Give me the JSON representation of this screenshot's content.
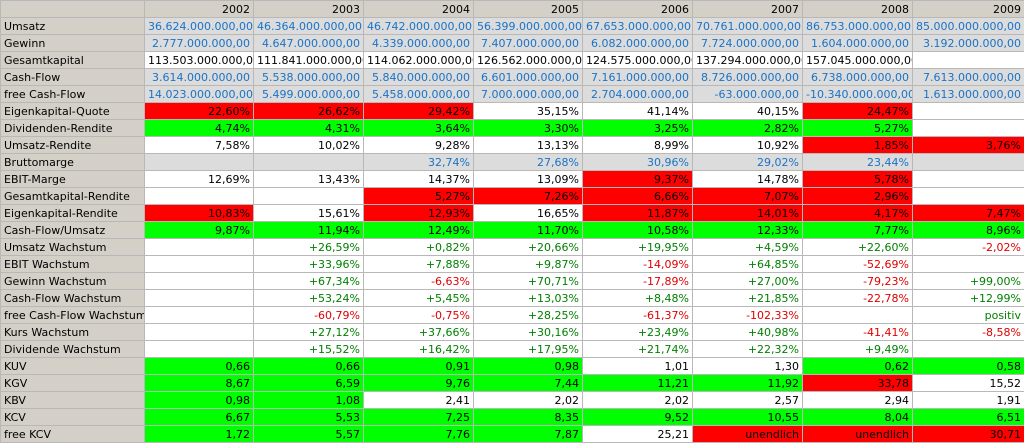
{
  "colors": {
    "green": "#00ff00",
    "red": "#ff0000",
    "grey": "#dcdcdc",
    "blue_text": "#1a73c7"
  },
  "years": [
    "2002",
    "2003",
    "2004",
    "2005",
    "2006",
    "2007",
    "2008",
    "2009"
  ],
  "rows": [
    {
      "label": "Umsatz",
      "values": [
        {
          "v": "36.624.000.000,00",
          "bg": "l",
          "fg": "b"
        },
        {
          "v": "46.364.000.000,00",
          "bg": "l",
          "fg": "b"
        },
        {
          "v": "46.742.000.000,00",
          "bg": "l",
          "fg": "b"
        },
        {
          "v": "56.399.000.000,00",
          "bg": "l",
          "fg": "b"
        },
        {
          "v": "67.653.000.000,00",
          "bg": "l",
          "fg": "b"
        },
        {
          "v": "70.761.000.000,00",
          "bg": "l",
          "fg": "b"
        },
        {
          "v": "86.753.000.000,00",
          "bg": "l",
          "fg": "b"
        },
        {
          "v": "85.000.000.000,00",
          "bg": "l",
          "fg": "b"
        }
      ]
    },
    {
      "label": "Gewinn",
      "values": [
        {
          "v": "2.777.000.000,00",
          "bg": "l",
          "fg": "b"
        },
        {
          "v": "4.647.000.000,00",
          "bg": "l",
          "fg": "b"
        },
        {
          "v": "4.339.000.000,00",
          "bg": "l",
          "fg": "b"
        },
        {
          "v": "7.407.000.000,00",
          "bg": "l",
          "fg": "b"
        },
        {
          "v": "6.082.000.000,00",
          "bg": "l",
          "fg": "b"
        },
        {
          "v": "7.724.000.000,00",
          "bg": "l",
          "fg": "b"
        },
        {
          "v": "1.604.000.000,00",
          "bg": "l",
          "fg": "b"
        },
        {
          "v": "3.192.000.000,00",
          "bg": "l",
          "fg": "b"
        }
      ]
    },
    {
      "label": "Gesamtkapital",
      "values": [
        {
          "v": "113.503.000.000,00",
          "bg": "w",
          "fg": "k"
        },
        {
          "v": "111.841.000.000,00",
          "bg": "w",
          "fg": "k"
        },
        {
          "v": "114.062.000.000,00",
          "bg": "w",
          "fg": "k"
        },
        {
          "v": "126.562.000.000,00",
          "bg": "w",
          "fg": "k"
        },
        {
          "v": "124.575.000.000,00",
          "bg": "w",
          "fg": "k"
        },
        {
          "v": "137.294.000.000,00",
          "bg": "w",
          "fg": "k"
        },
        {
          "v": "157.045.000.000,00",
          "bg": "w",
          "fg": "k"
        },
        {
          "v": "",
          "bg": "w",
          "fg": "k"
        }
      ]
    },
    {
      "label": "Cash-Flow",
      "values": [
        {
          "v": "3.614.000.000,00",
          "bg": "l",
          "fg": "b"
        },
        {
          "v": "5.538.000.000,00",
          "bg": "l",
          "fg": "b"
        },
        {
          "v": "5.840.000.000,00",
          "bg": "l",
          "fg": "b"
        },
        {
          "v": "6.601.000.000,00",
          "bg": "l",
          "fg": "b"
        },
        {
          "v": "7.161.000.000,00",
          "bg": "l",
          "fg": "b"
        },
        {
          "v": "8.726.000.000,00",
          "bg": "l",
          "fg": "b"
        },
        {
          "v": "6.738.000.000,00",
          "bg": "l",
          "fg": "b"
        },
        {
          "v": "7.613.000.000,00",
          "bg": "l",
          "fg": "b"
        }
      ]
    },
    {
      "label": "free Cash-Flow",
      "values": [
        {
          "v": "14.023.000.000,00",
          "bg": "l",
          "fg": "b"
        },
        {
          "v": "5.499.000.000,00",
          "bg": "l",
          "fg": "b"
        },
        {
          "v": "5.458.000.000,00",
          "bg": "l",
          "fg": "b"
        },
        {
          "v": "7.000.000.000,00",
          "bg": "l",
          "fg": "b"
        },
        {
          "v": "2.704.000.000,00",
          "bg": "l",
          "fg": "b"
        },
        {
          "v": "-63.000.000,00",
          "bg": "l",
          "fg": "b"
        },
        {
          "v": "-10.340.000.000,00",
          "bg": "l",
          "fg": "b"
        },
        {
          "v": "1.613.000.000,00",
          "bg": "l",
          "fg": "b"
        }
      ]
    },
    {
      "label": "Eigenkapital-Quote",
      "values": [
        {
          "v": "22,60%",
          "bg": "r",
          "fg": "k"
        },
        {
          "v": "26,62%",
          "bg": "r",
          "fg": "k"
        },
        {
          "v": "29,42%",
          "bg": "r",
          "fg": "k"
        },
        {
          "v": "35,15%",
          "bg": "w",
          "fg": "k"
        },
        {
          "v": "41,14%",
          "bg": "w",
          "fg": "k"
        },
        {
          "v": "40,15%",
          "bg": "w",
          "fg": "k"
        },
        {
          "v": "24,47%",
          "bg": "r",
          "fg": "k"
        },
        {
          "v": "",
          "bg": "w",
          "fg": "k"
        }
      ]
    },
    {
      "label": "Dividenden-Rendite",
      "values": [
        {
          "v": "4,74%",
          "bg": "g",
          "fg": "k"
        },
        {
          "v": "4,31%",
          "bg": "g",
          "fg": "k"
        },
        {
          "v": "3,64%",
          "bg": "g",
          "fg": "k"
        },
        {
          "v": "3,30%",
          "bg": "g",
          "fg": "k"
        },
        {
          "v": "3,25%",
          "bg": "g",
          "fg": "k"
        },
        {
          "v": "2,82%",
          "bg": "g",
          "fg": "k"
        },
        {
          "v": "5,27%",
          "bg": "g",
          "fg": "k"
        },
        {
          "v": "",
          "bg": "w",
          "fg": "k"
        }
      ]
    },
    {
      "label": "Umsatz-Rendite",
      "values": [
        {
          "v": "7,58%",
          "bg": "w",
          "fg": "k"
        },
        {
          "v": "10,02%",
          "bg": "w",
          "fg": "k"
        },
        {
          "v": "9,28%",
          "bg": "w",
          "fg": "k"
        },
        {
          "v": "13,13%",
          "bg": "w",
          "fg": "k"
        },
        {
          "v": "8,99%",
          "bg": "w",
          "fg": "k"
        },
        {
          "v": "10,92%",
          "bg": "w",
          "fg": "k"
        },
        {
          "v": "1,85%",
          "bg": "r",
          "fg": "k"
        },
        {
          "v": "3,76%",
          "bg": "r",
          "fg": "k"
        }
      ]
    },
    {
      "label": "Bruttomarge",
      "values": [
        {
          "v": "",
          "bg": "l",
          "fg": "b"
        },
        {
          "v": "",
          "bg": "l",
          "fg": "b"
        },
        {
          "v": "32,74%",
          "bg": "l",
          "fg": "b"
        },
        {
          "v": "27,68%",
          "bg": "l",
          "fg": "b"
        },
        {
          "v": "30,96%",
          "bg": "l",
          "fg": "b"
        },
        {
          "v": "29,02%",
          "bg": "l",
          "fg": "b"
        },
        {
          "v": "23,44%",
          "bg": "l",
          "fg": "b"
        },
        {
          "v": "",
          "bg": "l",
          "fg": "b"
        }
      ]
    },
    {
      "label": "EBIT-Marge",
      "values": [
        {
          "v": "12,69%",
          "bg": "w",
          "fg": "k"
        },
        {
          "v": "13,43%",
          "bg": "w",
          "fg": "k"
        },
        {
          "v": "14,37%",
          "bg": "w",
          "fg": "k"
        },
        {
          "v": "13,09%",
          "bg": "w",
          "fg": "k"
        },
        {
          "v": "9,37%",
          "bg": "r",
          "fg": "k"
        },
        {
          "v": "14,78%",
          "bg": "w",
          "fg": "k"
        },
        {
          "v": "5,78%",
          "bg": "r",
          "fg": "k"
        },
        {
          "v": "",
          "bg": "w",
          "fg": "k"
        }
      ]
    },
    {
      "label": "Gesamtkapital-Rendite",
      "values": [
        {
          "v": "",
          "bg": "w",
          "fg": "k"
        },
        {
          "v": "",
          "bg": "w",
          "fg": "k"
        },
        {
          "v": "5,27%",
          "bg": "r",
          "fg": "k"
        },
        {
          "v": "7,26%",
          "bg": "r",
          "fg": "k"
        },
        {
          "v": "6,66%",
          "bg": "r",
          "fg": "k"
        },
        {
          "v": "7,07%",
          "bg": "r",
          "fg": "k"
        },
        {
          "v": "2,96%",
          "bg": "r",
          "fg": "k"
        },
        {
          "v": "",
          "bg": "w",
          "fg": "k"
        }
      ]
    },
    {
      "label": "Eigenkapital-Rendite",
      "values": [
        {
          "v": "10,83%",
          "bg": "r",
          "fg": "k"
        },
        {
          "v": "15,61%",
          "bg": "w",
          "fg": "k"
        },
        {
          "v": "12,93%",
          "bg": "r",
          "fg": "k"
        },
        {
          "v": "16,65%",
          "bg": "w",
          "fg": "k"
        },
        {
          "v": "11,87%",
          "bg": "r",
          "fg": "k"
        },
        {
          "v": "14,01%",
          "bg": "r",
          "fg": "k"
        },
        {
          "v": "4,17%",
          "bg": "r",
          "fg": "k"
        },
        {
          "v": "7,47%",
          "bg": "r",
          "fg": "k"
        }
      ]
    },
    {
      "label": "Cash-Flow/Umsatz",
      "values": [
        {
          "v": "9,87%",
          "bg": "g",
          "fg": "k"
        },
        {
          "v": "11,94%",
          "bg": "g",
          "fg": "k"
        },
        {
          "v": "12,49%",
          "bg": "g",
          "fg": "k"
        },
        {
          "v": "11,70%",
          "bg": "g",
          "fg": "k"
        },
        {
          "v": "10,58%",
          "bg": "g",
          "fg": "k"
        },
        {
          "v": "12,33%",
          "bg": "g",
          "fg": "k"
        },
        {
          "v": "7,77%",
          "bg": "g",
          "fg": "k"
        },
        {
          "v": "8,96%",
          "bg": "g",
          "fg": "k"
        }
      ]
    },
    {
      "label": "Umsatz Wachstum",
      "values": [
        {
          "v": "",
          "bg": "w",
          "fg": "k"
        },
        {
          "v": "+26,59%",
          "bg": "w",
          "fg": "ok"
        },
        {
          "v": "+0,82%",
          "bg": "w",
          "fg": "ok"
        },
        {
          "v": "+20,66%",
          "bg": "w",
          "fg": "ok"
        },
        {
          "v": "+19,95%",
          "bg": "w",
          "fg": "ok"
        },
        {
          "v": "+4,59%",
          "bg": "w",
          "fg": "ok"
        },
        {
          "v": "+22,60%",
          "bg": "w",
          "fg": "ok"
        },
        {
          "v": "-2,02%",
          "bg": "w",
          "fg": "bad"
        }
      ]
    },
    {
      "label": "EBIT Wachstum",
      "values": [
        {
          "v": "",
          "bg": "w",
          "fg": "k"
        },
        {
          "v": "+33,96%",
          "bg": "w",
          "fg": "ok"
        },
        {
          "v": "+7,88%",
          "bg": "w",
          "fg": "ok"
        },
        {
          "v": "+9,87%",
          "bg": "w",
          "fg": "ok"
        },
        {
          "v": "-14,09%",
          "bg": "w",
          "fg": "bad"
        },
        {
          "v": "+64,85%",
          "bg": "w",
          "fg": "ok"
        },
        {
          "v": "-52,69%",
          "bg": "w",
          "fg": "bad"
        },
        {
          "v": "",
          "bg": "w",
          "fg": "k"
        }
      ]
    },
    {
      "label": "Gewinn Wachstum",
      "values": [
        {
          "v": "",
          "bg": "w",
          "fg": "k"
        },
        {
          "v": "+67,34%",
          "bg": "w",
          "fg": "ok"
        },
        {
          "v": "-6,63%",
          "bg": "w",
          "fg": "bad"
        },
        {
          "v": "+70,71%",
          "bg": "w",
          "fg": "ok"
        },
        {
          "v": "-17,89%",
          "bg": "w",
          "fg": "bad"
        },
        {
          "v": "+27,00%",
          "bg": "w",
          "fg": "ok"
        },
        {
          "v": "-79,23%",
          "bg": "w",
          "fg": "bad"
        },
        {
          "v": "+99,00%",
          "bg": "w",
          "fg": "ok"
        }
      ]
    },
    {
      "label": "Cash-Flow Wachstum",
      "values": [
        {
          "v": "",
          "bg": "w",
          "fg": "k"
        },
        {
          "v": "+53,24%",
          "bg": "w",
          "fg": "ok"
        },
        {
          "v": "+5,45%",
          "bg": "w",
          "fg": "ok"
        },
        {
          "v": "+13,03%",
          "bg": "w",
          "fg": "ok"
        },
        {
          "v": "+8,48%",
          "bg": "w",
          "fg": "ok"
        },
        {
          "v": "+21,85%",
          "bg": "w",
          "fg": "ok"
        },
        {
          "v": "-22,78%",
          "bg": "w",
          "fg": "bad"
        },
        {
          "v": "+12,99%",
          "bg": "w",
          "fg": "ok"
        }
      ]
    },
    {
      "label": "free Cash-Flow Wachstum",
      "values": [
        {
          "v": "",
          "bg": "w",
          "fg": "k"
        },
        {
          "v": "-60,79%",
          "bg": "w",
          "fg": "bad"
        },
        {
          "v": "-0,75%",
          "bg": "w",
          "fg": "bad"
        },
        {
          "v": "+28,25%",
          "bg": "w",
          "fg": "ok"
        },
        {
          "v": "-61,37%",
          "bg": "w",
          "fg": "bad"
        },
        {
          "v": "-102,33%",
          "bg": "w",
          "fg": "bad"
        },
        {
          "v": "",
          "bg": "w",
          "fg": "k"
        },
        {
          "v": "positiv",
          "bg": "w",
          "fg": "ok"
        }
      ]
    },
    {
      "label": "Kurs Wachstum",
      "values": [
        {
          "v": "",
          "bg": "w",
          "fg": "k"
        },
        {
          "v": "+27,12%",
          "bg": "w",
          "fg": "ok"
        },
        {
          "v": "+37,66%",
          "bg": "w",
          "fg": "ok"
        },
        {
          "v": "+30,16%",
          "bg": "w",
          "fg": "ok"
        },
        {
          "v": "+23,49%",
          "bg": "w",
          "fg": "ok"
        },
        {
          "v": "+40,98%",
          "bg": "w",
          "fg": "ok"
        },
        {
          "v": "-41,41%",
          "bg": "w",
          "fg": "bad"
        },
        {
          "v": "-8,58%",
          "bg": "w",
          "fg": "bad"
        }
      ]
    },
    {
      "label": "Dividende Wachstum",
      "values": [
        {
          "v": "",
          "bg": "w",
          "fg": "k"
        },
        {
          "v": "+15,52%",
          "bg": "w",
          "fg": "ok"
        },
        {
          "v": "+16,42%",
          "bg": "w",
          "fg": "ok"
        },
        {
          "v": "+17,95%",
          "bg": "w",
          "fg": "ok"
        },
        {
          "v": "+21,74%",
          "bg": "w",
          "fg": "ok"
        },
        {
          "v": "+22,32%",
          "bg": "w",
          "fg": "ok"
        },
        {
          "v": "+9,49%",
          "bg": "w",
          "fg": "ok"
        },
        {
          "v": "",
          "bg": "w",
          "fg": "k"
        }
      ]
    },
    {
      "label": "KUV",
      "values": [
        {
          "v": "0,66",
          "bg": "g",
          "fg": "k"
        },
        {
          "v": "0,66",
          "bg": "g",
          "fg": "k"
        },
        {
          "v": "0,91",
          "bg": "g",
          "fg": "k"
        },
        {
          "v": "0,98",
          "bg": "g",
          "fg": "k"
        },
        {
          "v": "1,01",
          "bg": "w",
          "fg": "k"
        },
        {
          "v": "1,30",
          "bg": "w",
          "fg": "k"
        },
        {
          "v": "0,62",
          "bg": "g",
          "fg": "k"
        },
        {
          "v": "0,58",
          "bg": "g",
          "fg": "k"
        }
      ]
    },
    {
      "label": "KGV",
      "values": [
        {
          "v": "8,67",
          "bg": "g",
          "fg": "k"
        },
        {
          "v": "6,59",
          "bg": "g",
          "fg": "k"
        },
        {
          "v": "9,76",
          "bg": "g",
          "fg": "k"
        },
        {
          "v": "7,44",
          "bg": "g",
          "fg": "k"
        },
        {
          "v": "11,21",
          "bg": "g",
          "fg": "k"
        },
        {
          "v": "11,92",
          "bg": "g",
          "fg": "k"
        },
        {
          "v": "33,78",
          "bg": "r",
          "fg": "k"
        },
        {
          "v": "15,52",
          "bg": "w",
          "fg": "k"
        }
      ]
    },
    {
      "label": "KBV",
      "values": [
        {
          "v": "0,98",
          "bg": "g",
          "fg": "k"
        },
        {
          "v": "1,08",
          "bg": "g",
          "fg": "k"
        },
        {
          "v": "2,41",
          "bg": "w",
          "fg": "k"
        },
        {
          "v": "2,02",
          "bg": "w",
          "fg": "k"
        },
        {
          "v": "2,02",
          "bg": "w",
          "fg": "k"
        },
        {
          "v": "2,57",
          "bg": "w",
          "fg": "k"
        },
        {
          "v": "2,94",
          "bg": "w",
          "fg": "k"
        },
        {
          "v": "1,91",
          "bg": "w",
          "fg": "k"
        }
      ]
    },
    {
      "label": "KCV",
      "values": [
        {
          "v": "6,67",
          "bg": "g",
          "fg": "k"
        },
        {
          "v": "5,53",
          "bg": "g",
          "fg": "k"
        },
        {
          "v": "7,25",
          "bg": "g",
          "fg": "k"
        },
        {
          "v": "8,35",
          "bg": "g",
          "fg": "k"
        },
        {
          "v": "9,52",
          "bg": "g",
          "fg": "k"
        },
        {
          "v": "10,55",
          "bg": "g",
          "fg": "k"
        },
        {
          "v": "8,04",
          "bg": "g",
          "fg": "k"
        },
        {
          "v": "6,51",
          "bg": "g",
          "fg": "k"
        }
      ]
    },
    {
      "label": "free KCV",
      "values": [
        {
          "v": "1,72",
          "bg": "g",
          "fg": "k"
        },
        {
          "v": "5,57",
          "bg": "g",
          "fg": "k"
        },
        {
          "v": "7,76",
          "bg": "g",
          "fg": "k"
        },
        {
          "v": "7,87",
          "bg": "g",
          "fg": "k"
        },
        {
          "v": "25,21",
          "bg": "w",
          "fg": "k"
        },
        {
          "v": "unendlich",
          "bg": "r",
          "fg": "k"
        },
        {
          "v": "unendlich",
          "bg": "r",
          "fg": "k"
        },
        {
          "v": "30,71",
          "bg": "r",
          "fg": "k"
        }
      ]
    }
  ]
}
